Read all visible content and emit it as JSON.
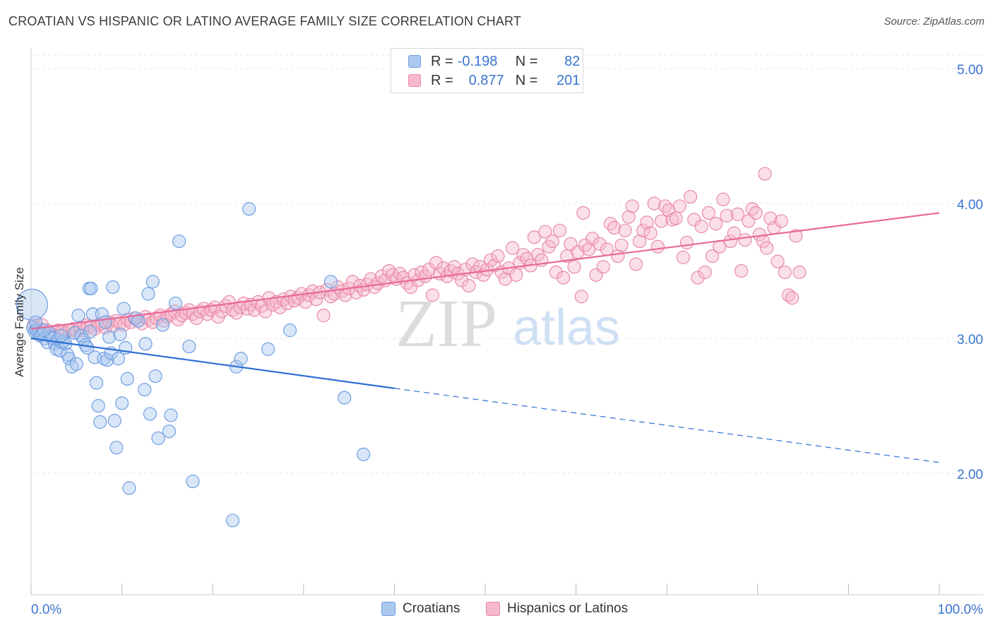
{
  "title": "CROATIAN VS HISPANIC OR LATINO AVERAGE FAMILY SIZE CORRELATION CHART",
  "source": "Source: ZipAtlas.com",
  "watermark": {
    "zip": "ZIP",
    "atlas": "atlas"
  },
  "legend": {
    "rows": [
      {
        "r_label": "R =",
        "r_value": "-0.198",
        "n_label": "N =",
        "n_value": "82",
        "color": "#aac8f0",
        "border": "#6f9fe0"
      },
      {
        "r_label": "R =",
        "r_value": "0.877",
        "n_label": "N =",
        "n_value": "201",
        "color": "#f6b8cc",
        "border": "#e88aa8"
      }
    ]
  },
  "bottom_legend": [
    "Croatians",
    "Hispanics or Latinos"
  ],
  "colors": {
    "blue_fill": "#aac8f0",
    "blue_stroke": "#6f9fe0",
    "blue_line": "#2e6fd4",
    "pink_fill": "#f6b8cc",
    "pink_stroke": "#e88aa8",
    "pink_line": "#e8699a",
    "tick_text": "#3a74d0",
    "grid": "#e6e6e6"
  },
  "chart_data": {
    "type": "scatter",
    "title": "CROATIAN VS HISPANIC OR LATINO AVERAGE FAMILY SIZE CORRELATION CHART",
    "xlabel": "",
    "ylabel": "Average Family Size",
    "xlim": [
      0,
      100
    ],
    "ylim": [
      1.1,
      5.1
    ],
    "x_tick_labels": [
      "0.0%",
      "100.0%"
    ],
    "y_ticks": [
      2.0,
      3.0,
      4.0,
      5.0
    ],
    "y_tick_labels": [
      "2.00",
      "3.00",
      "4.00",
      "5.00"
    ],
    "grid": true,
    "legend_placement": "top-center",
    "series": [
      {
        "name": "Croatians",
        "r": -0.198,
        "n": 82,
        "trend": {
          "x0": 0,
          "y0": 3.0,
          "x1": 40,
          "y1": 2.63,
          "dashed_to_x": 100,
          "dashed_to_y": 2.08
        },
        "points": [
          [
            0.1,
            3.25,
            "big"
          ],
          [
            0.2,
            3.08
          ],
          [
            0.4,
            3.05
          ],
          [
            0.6,
            3.06
          ],
          [
            0.8,
            3.04
          ],
          [
            1.0,
            3.02
          ],
          [
            1.2,
            3.03
          ],
          [
            1.5,
            3.0
          ],
          [
            1.8,
            2.97
          ],
          [
            2.0,
            3.04
          ],
          [
            2.2,
            3.01
          ],
          [
            2.4,
            3.0
          ],
          [
            2.6,
            2.96
          ],
          [
            2.8,
            2.92
          ],
          [
            3.0,
            2.99
          ],
          [
            3.2,
            2.91
          ],
          [
            3.4,
            2.97
          ],
          [
            3.6,
            2.98
          ],
          [
            3.8,
            2.96
          ],
          [
            4.0,
            2.88
          ],
          [
            4.2,
            2.85
          ],
          [
            4.5,
            2.79
          ],
          [
            4.8,
            3.04
          ],
          [
            5.0,
            2.81
          ],
          [
            5.2,
            3.17
          ],
          [
            5.5,
            3.02
          ],
          [
            5.8,
            2.99
          ],
          [
            6.0,
            2.95
          ],
          [
            6.2,
            2.93
          ],
          [
            6.4,
            3.37
          ],
          [
            6.6,
            3.37
          ],
          [
            6.8,
            3.18
          ],
          [
            7.0,
            2.86
          ],
          [
            7.2,
            2.67
          ],
          [
            7.4,
            2.5
          ],
          [
            7.6,
            2.38
          ],
          [
            7.8,
            3.18
          ],
          [
            8.0,
            2.85
          ],
          [
            8.2,
            3.12
          ],
          [
            8.4,
            2.84
          ],
          [
            8.6,
            3.01
          ],
          [
            8.8,
            2.89
          ],
          [
            9.0,
            3.38
          ],
          [
            9.2,
            2.39
          ],
          [
            9.4,
            2.19
          ],
          [
            9.6,
            2.85
          ],
          [
            9.8,
            3.03
          ],
          [
            10.0,
            2.52
          ],
          [
            10.2,
            3.22
          ],
          [
            10.4,
            2.93
          ],
          [
            10.6,
            2.7
          ],
          [
            10.8,
            1.89
          ],
          [
            11.5,
            3.15
          ],
          [
            11.8,
            3.13
          ],
          [
            12.5,
            2.62
          ],
          [
            12.6,
            2.96
          ],
          [
            12.9,
            3.33
          ],
          [
            13.1,
            2.44
          ],
          [
            13.4,
            3.42
          ],
          [
            13.7,
            2.72
          ],
          [
            14.0,
            2.26
          ],
          [
            14.5,
            3.1
          ],
          [
            15.2,
            2.31
          ],
          [
            15.4,
            2.43
          ],
          [
            15.9,
            3.26
          ],
          [
            16.3,
            3.72
          ],
          [
            17.4,
            2.94
          ],
          [
            17.8,
            1.94
          ],
          [
            22.2,
            1.65
          ],
          [
            22.6,
            2.79
          ],
          [
            23.1,
            2.85
          ],
          [
            24.0,
            3.96
          ],
          [
            26.1,
            2.92
          ],
          [
            28.5,
            3.06
          ],
          [
            33.0,
            3.42
          ],
          [
            34.5,
            2.56
          ],
          [
            36.6,
            2.14
          ],
          [
            0.5,
            3.12
          ],
          [
            1.4,
            3.06
          ],
          [
            6.5,
            3.05
          ],
          [
            3.3,
            3.02
          ]
        ]
      },
      {
        "name": "Hispanics or Latinos",
        "r": 0.877,
        "n": 201,
        "trend": {
          "x0": 0,
          "y0": 3.07,
          "x1": 100,
          "y1": 3.93
        },
        "points": [
          [
            0.3,
            3.1
          ],
          [
            0.6,
            3.08
          ],
          [
            1.0,
            3.07
          ],
          [
            1.4,
            3.05
          ],
          [
            1.8,
            3.06
          ],
          [
            2.2,
            3.04
          ],
          [
            2.6,
            3.05
          ],
          [
            3.0,
            3.06
          ],
          [
            3.4,
            3.05
          ],
          [
            3.8,
            3.04
          ],
          [
            4.2,
            3.06
          ],
          [
            4.6,
            3.07
          ],
          [
            5.0,
            3.05
          ],
          [
            5.4,
            3.08
          ],
          [
            5.8,
            3.06
          ],
          [
            6.2,
            3.1
          ],
          [
            6.6,
            3.09
          ],
          [
            7.0,
            3.07
          ],
          [
            7.4,
            3.1
          ],
          [
            7.8,
            3.11
          ],
          [
            8.2,
            3.08
          ],
          [
            8.6,
            3.12
          ],
          [
            9.0,
            3.09
          ],
          [
            9.4,
            3.13
          ],
          [
            9.8,
            3.11
          ],
          [
            10.2,
            3.1
          ],
          [
            10.6,
            3.14
          ],
          [
            11.0,
            3.12
          ],
          [
            11.4,
            3.15
          ],
          [
            11.8,
            3.13
          ],
          [
            12.2,
            3.11
          ],
          [
            12.6,
            3.16
          ],
          [
            13.0,
            3.14
          ],
          [
            13.4,
            3.12
          ],
          [
            13.8,
            3.15
          ],
          [
            14.2,
            3.17
          ],
          [
            14.6,
            3.13
          ],
          [
            15.0,
            3.16
          ],
          [
            15.4,
            3.18
          ],
          [
            15.8,
            3.2
          ],
          [
            16.2,
            3.14
          ],
          [
            16.6,
            3.17
          ],
          [
            17.0,
            3.19
          ],
          [
            17.4,
            3.21
          ],
          [
            17.8,
            3.18
          ],
          [
            18.2,
            3.15
          ],
          [
            18.6,
            3.2
          ],
          [
            19.0,
            3.22
          ],
          [
            19.4,
            3.18
          ],
          [
            19.8,
            3.21
          ],
          [
            20.2,
            3.23
          ],
          [
            20.6,
            3.16
          ],
          [
            21.0,
            3.2
          ],
          [
            21.4,
            3.24
          ],
          [
            21.8,
            3.27
          ],
          [
            22.2,
            3.21
          ],
          [
            22.6,
            3.19
          ],
          [
            23.0,
            3.23
          ],
          [
            23.4,
            3.26
          ],
          [
            23.8,
            3.22
          ],
          [
            24.2,
            3.25
          ],
          [
            24.6,
            3.21
          ],
          [
            25.0,
            3.27
          ],
          [
            25.4,
            3.24
          ],
          [
            25.8,
            3.2
          ],
          [
            26.2,
            3.3
          ],
          [
            26.6,
            3.25
          ],
          [
            27.0,
            3.27
          ],
          [
            27.4,
            3.23
          ],
          [
            27.8,
            3.29
          ],
          [
            28.2,
            3.26
          ],
          [
            28.6,
            3.31
          ],
          [
            29.0,
            3.28
          ],
          [
            29.4,
            3.3
          ],
          [
            29.8,
            3.33
          ],
          [
            30.2,
            3.27
          ],
          [
            30.6,
            3.32
          ],
          [
            31.0,
            3.35
          ],
          [
            31.4,
            3.29
          ],
          [
            31.8,
            3.34
          ],
          [
            32.2,
            3.17
          ],
          [
            32.6,
            3.36
          ],
          [
            33.0,
            3.31
          ],
          [
            33.4,
            3.33
          ],
          [
            33.8,
            3.38
          ],
          [
            34.2,
            3.35
          ],
          [
            34.6,
            3.32
          ],
          [
            35.0,
            3.37
          ],
          [
            35.4,
            3.42
          ],
          [
            35.8,
            3.34
          ],
          [
            36.2,
            3.39
          ],
          [
            36.6,
            3.36
          ],
          [
            37.0,
            3.4
          ],
          [
            37.4,
            3.44
          ],
          [
            37.8,
            3.38
          ],
          [
            38.2,
            3.41
          ],
          [
            38.6,
            3.46
          ],
          [
            39.0,
            3.43
          ],
          [
            39.4,
            3.5
          ],
          [
            39.8,
            3.47
          ],
          [
            40.2,
            3.44
          ],
          [
            40.6,
            3.48
          ],
          [
            41.0,
            3.45
          ],
          [
            41.4,
            3.41
          ],
          [
            41.8,
            3.38
          ],
          [
            42.2,
            3.47
          ],
          [
            42.6,
            3.43
          ],
          [
            43.0,
            3.49
          ],
          [
            43.4,
            3.46
          ],
          [
            43.8,
            3.51
          ],
          [
            44.2,
            3.32
          ],
          [
            44.6,
            3.56
          ],
          [
            45.0,
            3.48
          ],
          [
            45.4,
            3.52
          ],
          [
            45.8,
            3.46
          ],
          [
            46.2,
            3.5
          ],
          [
            46.6,
            3.53
          ],
          [
            47.0,
            3.48
          ],
          [
            47.4,
            3.43
          ],
          [
            47.8,
            3.51
          ],
          [
            48.2,
            3.39
          ],
          [
            48.6,
            3.55
          ],
          [
            49.0,
            3.49
          ],
          [
            49.4,
            3.53
          ],
          [
            49.8,
            3.47
          ],
          [
            50.2,
            3.51
          ],
          [
            50.6,
            3.58
          ],
          [
            51.0,
            3.54
          ],
          [
            51.4,
            3.61
          ],
          [
            51.8,
            3.49
          ],
          [
            52.2,
            3.44
          ],
          [
            52.6,
            3.52
          ],
          [
            53.0,
            3.67
          ],
          [
            53.4,
            3.47
          ],
          [
            53.8,
            3.56
          ],
          [
            54.2,
            3.62
          ],
          [
            54.6,
            3.59
          ],
          [
            55.0,
            3.54
          ],
          [
            55.4,
            3.75
          ],
          [
            55.8,
            3.62
          ],
          [
            56.2,
            3.58
          ],
          [
            56.6,
            3.79
          ],
          [
            57.0,
            3.68
          ],
          [
            57.4,
            3.72
          ],
          [
            57.8,
            3.49
          ],
          [
            58.2,
            3.8
          ],
          [
            58.6,
            3.45
          ],
          [
            59.0,
            3.61
          ],
          [
            59.4,
            3.7
          ],
          [
            59.8,
            3.53
          ],
          [
            60.2,
            3.64
          ],
          [
            60.6,
            3.31
          ],
          [
            61.0,
            3.69
          ],
          [
            61.4,
            3.66
          ],
          [
            61.8,
            3.74
          ],
          [
            62.2,
            3.47
          ],
          [
            62.6,
            3.7
          ],
          [
            63.0,
            3.53
          ],
          [
            63.4,
            3.66
          ],
          [
            63.8,
            3.85
          ],
          [
            64.2,
            3.82
          ],
          [
            64.6,
            3.61
          ],
          [
            65.0,
            3.69
          ],
          [
            65.4,
            3.8
          ],
          [
            65.8,
            3.9
          ],
          [
            66.2,
            3.98
          ],
          [
            66.6,
            3.55
          ],
          [
            67.0,
            3.72
          ],
          [
            67.4,
            3.8
          ],
          [
            67.8,
            3.86
          ],
          [
            68.2,
            3.78
          ],
          [
            68.6,
            4.0
          ],
          [
            69.0,
            3.68
          ],
          [
            69.4,
            3.87
          ],
          [
            69.8,
            3.98
          ],
          [
            70.2,
            3.95
          ],
          [
            70.6,
            3.88
          ],
          [
            71.0,
            3.89
          ],
          [
            71.4,
            3.98
          ],
          [
            71.8,
            3.6
          ],
          [
            72.2,
            3.71
          ],
          [
            72.6,
            4.05
          ],
          [
            73.0,
            3.88
          ],
          [
            73.4,
            3.45
          ],
          [
            73.8,
            3.83
          ],
          [
            74.2,
            3.49
          ],
          [
            74.6,
            3.93
          ],
          [
            75.0,
            3.61
          ],
          [
            75.4,
            3.85
          ],
          [
            75.8,
            3.68
          ],
          [
            76.2,
            4.03
          ],
          [
            76.6,
            3.91
          ],
          [
            77.0,
            3.72
          ],
          [
            77.4,
            3.78
          ],
          [
            77.8,
            3.92
          ],
          [
            78.2,
            3.5
          ],
          [
            78.6,
            3.73
          ],
          [
            79.0,
            3.87
          ],
          [
            79.4,
            3.96
          ],
          [
            79.8,
            3.93
          ],
          [
            80.2,
            3.77
          ],
          [
            80.6,
            3.72
          ],
          [
            81.0,
            3.67
          ],
          [
            81.4,
            3.89
          ],
          [
            81.8,
            3.82
          ],
          [
            82.2,
            3.57
          ],
          [
            82.6,
            3.87
          ],
          [
            83.0,
            3.49
          ],
          [
            83.4,
            3.32
          ],
          [
            83.8,
            3.3
          ],
          [
            84.2,
            3.76
          ],
          [
            84.6,
            3.49
          ],
          [
            60.8,
            3.93
          ],
          [
            80.8,
            4.22
          ],
          [
            1.2,
            3.1
          ]
        ]
      }
    ]
  }
}
